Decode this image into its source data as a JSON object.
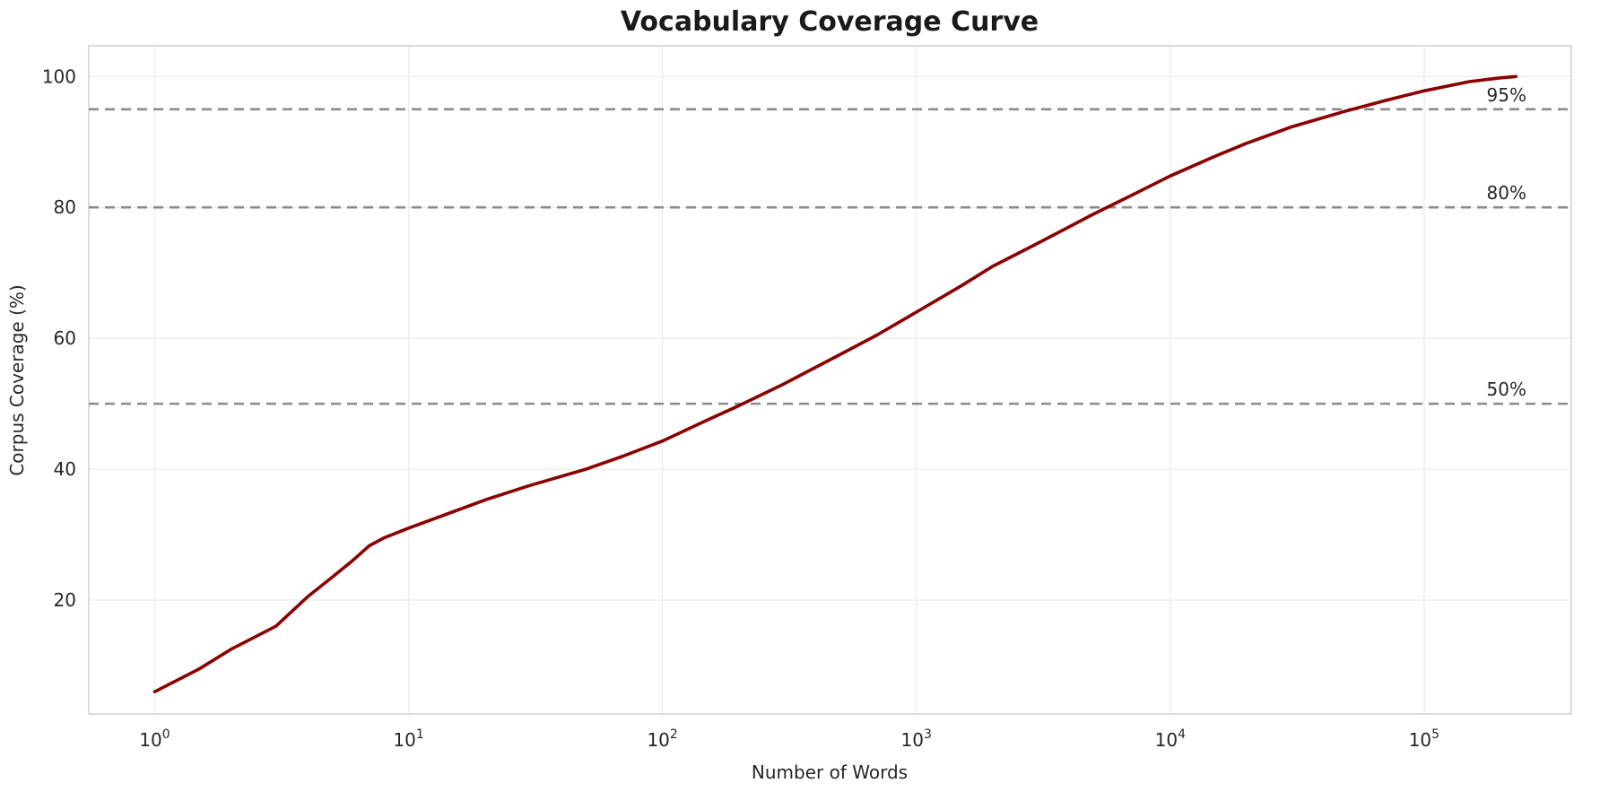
{
  "chart_data": {
    "type": "line",
    "title": "Vocabulary Coverage Curve",
    "xlabel": "Number of Words",
    "ylabel": "Corpus Coverage (%)",
    "xscale": "log",
    "xlim": [
      0.55,
      380000
    ],
    "ylim": [
      2.6,
      104.7
    ],
    "yticks": [
      20,
      40,
      60,
      80,
      100
    ],
    "xtick_exponents": [
      0,
      1,
      2,
      3,
      4,
      5
    ],
    "xtick_base": "10",
    "grid": true,
    "grid_color": "#ececec",
    "frame_color": "#cfcfcf",
    "line_color": "#8B0000",
    "line_width": 3.6,
    "reference_line_color": "#8a8a8a",
    "reference_lines": [
      {
        "value": 50,
        "label": "50%"
      },
      {
        "value": 80,
        "label": "80%"
      },
      {
        "value": 95,
        "label": "95%"
      }
    ],
    "series": [
      {
        "name": "coverage-curve",
        "x": [
          1,
          1.5,
          2,
          3,
          4,
          5,
          6,
          7,
          8,
          10,
          15,
          20,
          30,
          50,
          70,
          100,
          150,
          200,
          300,
          500,
          700,
          1000,
          1500,
          2000,
          3000,
          5000,
          7000,
          10000,
          15000,
          20000,
          30000,
          50000,
          70000,
          100000,
          150000,
          200000,
          230000
        ],
        "y": [
          6,
          9.5,
          12.5,
          16,
          20.5,
          23.5,
          26,
          28.3,
          29.5,
          31,
          33.5,
          35.3,
          37.5,
          40,
          42,
          44.3,
          47.5,
          49.7,
          53,
          57.5,
          60.5,
          64,
          68,
          71,
          74.5,
          79,
          81.8,
          84.8,
          87.8,
          89.8,
          92.3,
          94.8,
          96.3,
          97.8,
          99.2,
          99.8,
          100
        ]
      }
    ]
  }
}
